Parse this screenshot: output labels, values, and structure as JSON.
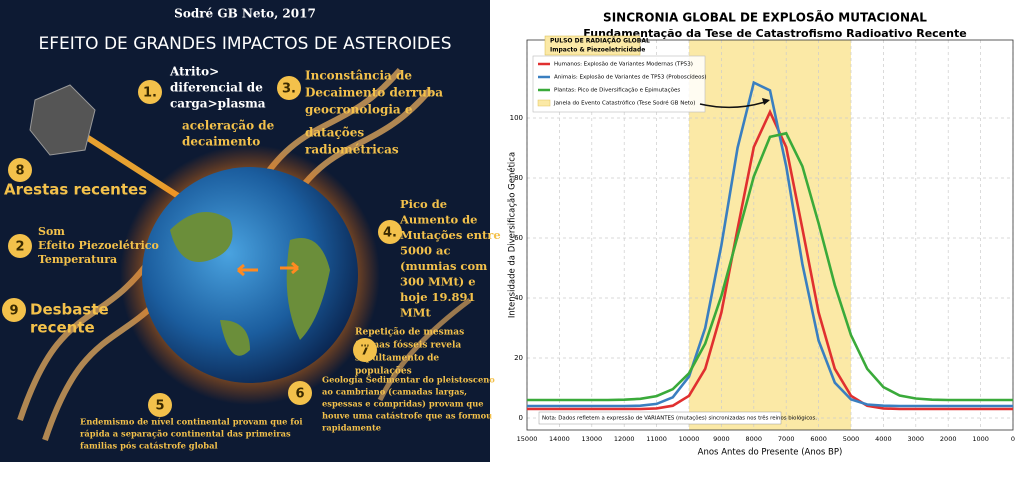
{
  "infographic": {
    "header": "Sodré GB Neto, 2017",
    "title": "EFEITO DE GRANDES IMPACTOS DE ASTEROIDES",
    "items": [
      {
        "number": "1.",
        "lines": [
          "Atrito>",
          "diferencial de",
          "carga>plasma",
          "aceleração de",
          "decaimento"
        ]
      },
      {
        "number": "3.",
        "lines": [
          "Inconstância de",
          "Decaimento derruba",
          "geocronologia e",
          "datações",
          "radiométricas"
        ]
      },
      {
        "number": "8",
        "lines": [
          "Arestas recentes"
        ]
      },
      {
        "number": "2",
        "lines": [
          "Som",
          "Efeito Piezoelétrico",
          "Temperatura"
        ]
      },
      {
        "number": "9",
        "lines": [
          "Desbaste",
          "recente"
        ]
      },
      {
        "number": "4.",
        "lines": [
          "Pico de",
          "Aumento de",
          "Mutações entre",
          "5000 ac",
          "(mumias com",
          "300 MMt) e",
          "hoje 19.891",
          "MMt"
        ]
      },
      {
        "number": "7",
        "lines": [
          "Repetição de mesmas",
          "formas fósseis revela",
          "sepultamento de",
          "populações"
        ]
      },
      {
        "number": "5",
        "lines": [
          "Endemismo de nível continental provam que  foi",
          "rápida a separação continental das primeiras",
          "familias pós catástrofe global"
        ]
      },
      {
        "number": "6",
        "lines": [
          "Geologia Sedimentar do pleistosceno",
          "ao cambriano (camadas largas,",
          "espessas e compridas) provam que",
          "houve uma catástrofe que as formou",
          "rapidamente"
        ]
      }
    ]
  },
  "chart_data": {
    "type": "line",
    "title": "SINCRONIA GLOBAL DE EXPLOSÃO MUTACIONAL",
    "subtitle": "Fundamentação da Tese de Catastrofismo Radioativo Recente",
    "x_label": "Anos Antes do Presente (Anos BP)",
    "y_label": "Intensidade da Diversificação Genética",
    "annotation": [
      "PULSO DE RADIAÇÃO GLOBAL",
      "Impacto & Piezoeletricidade"
    ],
    "note": "Nota: Dados refletem a expressão de VARIANTES (mutações) sincronizadas nos três reinos biológicos.",
    "x": [
      15000,
      14500,
      14000,
      13500,
      13000,
      12500,
      12000,
      11500,
      11000,
      10500,
      10000,
      9500,
      9000,
      8500,
      8000,
      7500,
      7000,
      6500,
      6000,
      5500,
      5000,
      4500,
      4000,
      3500,
      3000,
      2500,
      2000,
      1500,
      1000,
      500,
      0
    ],
    "series": [
      {
        "name": "Humanos: Explosão de Variantes Modernas (TP53)",
        "color": "#e03030",
        "values": [
          3,
          3,
          3,
          3,
          3,
          3,
          3,
          3,
          3.2,
          4.1,
          7.4,
          16.4,
          35.2,
          63.1,
          90.3,
          102,
          90.3,
          63.1,
          35.2,
          16.4,
          7.4,
          4.1,
          3.2,
          3,
          3,
          3,
          3,
          3,
          3,
          3,
          3
        ]
      },
      {
        "name": "Animais: Explosão de Variantes de TP53 (Proboscídeos)",
        "color": "#3a7fc0",
        "values": [
          4,
          4,
          4,
          4,
          4,
          4,
          4,
          4.1,
          4.7,
          6.9,
          13.8,
          30,
          57.6,
          90.1,
          111.8,
          109.2,
          83.9,
          51.3,
          25.8,
          11.8,
          6.2,
          4.5,
          4.1,
          4,
          4,
          4,
          4,
          4,
          4,
          4,
          4
        ]
      },
      {
        "name": "Plantas: Pico de Diversificação e Epimutações",
        "color": "#3aaa3a",
        "values": [
          6,
          6,
          6,
          6,
          6,
          6,
          6.1,
          6.4,
          7.3,
          9.6,
          14.9,
          24.8,
          40.7,
          60.6,
          80.5,
          93.7,
          94.9,
          83.9,
          64.9,
          44.3,
          27.6,
          16.4,
          10.3,
          7.5,
          6.5,
          6.1,
          6,
          6,
          6,
          6,
          6
        ]
      }
    ],
    "span": {
      "name": "Janela do Evento Catastrófico (Tese Sodré GB Neto)",
      "xrange": [
        10000,
        5000
      ],
      "color": "#fbe9a6"
    },
    "xlim": [
      15000,
      0
    ],
    "xticks": [
      15000,
      14000,
      13000,
      12000,
      11000,
      10000,
      9000,
      8000,
      7000,
      6000,
      5000,
      4000,
      3000,
      2000,
      1000,
      0
    ],
    "ylim": [
      -4,
      126
    ],
    "yticks": [
      0,
      20,
      40,
      60,
      80,
      100
    ],
    "grid": true,
    "legend": "upper left"
  }
}
